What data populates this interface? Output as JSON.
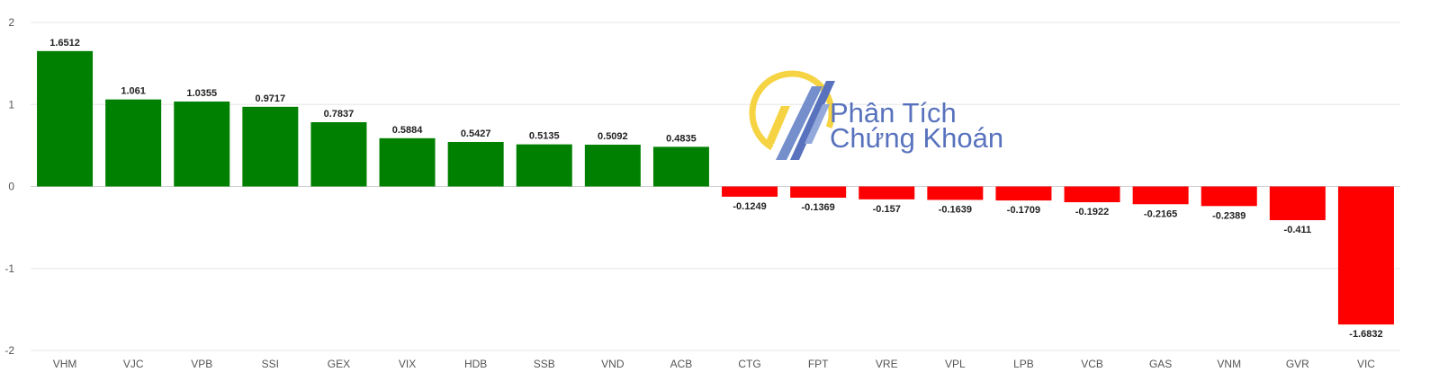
{
  "chart_data": {
    "type": "bar",
    "categories": [
      "VHM",
      "VJC",
      "VPB",
      "SSI",
      "GEX",
      "VIX",
      "HDB",
      "SSB",
      "VND",
      "ACB",
      "CTG",
      "FPT",
      "VRE",
      "VPL",
      "LPB",
      "VCB",
      "GAS",
      "VNM",
      "GVR",
      "VIC"
    ],
    "values": [
      1.6512,
      1.061,
      1.0355,
      0.9717,
      0.7837,
      0.5884,
      0.5427,
      0.5135,
      0.5092,
      0.4835,
      -0.1249,
      -0.1369,
      -0.157,
      -0.1639,
      -0.1709,
      -0.1922,
      -0.2165,
      -0.2389,
      -0.411,
      -1.6832
    ],
    "value_labels": [
      "1.6512",
      "1.061",
      "1.0355",
      "0.9717",
      "0.7837",
      "0.5884",
      "0.5427",
      "0.5135",
      "0.5092",
      "0.4835",
      "-0.1249",
      "-0.1369",
      "-0.157",
      "-0.1639",
      "-0.1709",
      "-0.1922",
      "-0.2165",
      "-0.2389",
      "-0.411",
      "-1.6832"
    ],
    "ylim": [
      -2,
      2
    ],
    "yticks": [
      "2",
      "1",
      "0",
      "-1",
      "-2"
    ],
    "grid": true,
    "legend": "none",
    "title": "",
    "xlabel": "",
    "ylabel": "",
    "colors": {
      "positive": "#008000",
      "negative": "#ff0000"
    }
  },
  "watermark": {
    "line1": "Phân Tích",
    "line2": "Chứng Khoán",
    "colors": {
      "text": "#4a67b8",
      "ring": "#f5d033",
      "bars": "#4a67b8"
    }
  }
}
